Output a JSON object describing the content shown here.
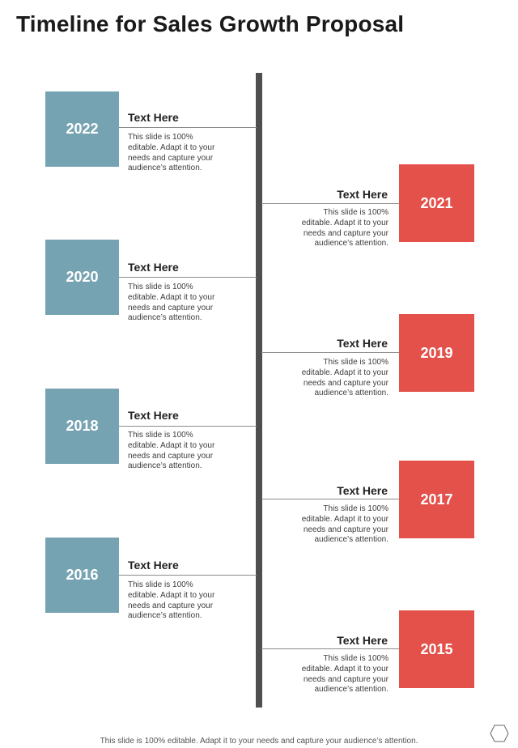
{
  "page": {
    "title": "Timeline for Sales Growth Proposal",
    "footer": "This slide is 100% editable. Adapt it to your needs and capture your audience’s attention."
  },
  "colors": {
    "left_box": "#76a3b2",
    "right_box": "#e4504a",
    "timeline_bar": "#4f4f4f"
  },
  "entries": [
    {
      "year": "2022",
      "heading": "Text Here",
      "lines": [
        "This slide is 100%",
        "editable. Adapt it to your",
        "needs and capture your",
        "audience’s attention."
      ]
    },
    {
      "year": "2021",
      "heading": "Text Here",
      "lines": [
        "This slide is 100%",
        "editable. Adapt it to your",
        "needs and capture your",
        "audience’s attention."
      ]
    },
    {
      "year": "2020",
      "heading": "Text Here",
      "lines": [
        "This slide is 100%",
        "editable. Adapt it to your",
        "needs and capture your",
        "audience’s attention."
      ]
    },
    {
      "year": "2019",
      "heading": "Text Here",
      "lines": [
        "This slide is 100%",
        "editable. Adapt it to your",
        "needs and capture your",
        "audience’s attention."
      ]
    },
    {
      "year": "2018",
      "heading": "Text Here",
      "lines": [
        "This slide is 100%",
        "editable. Adapt it to your",
        "needs and capture your",
        "audience’s attention."
      ]
    },
    {
      "year": "2017",
      "heading": "Text Here",
      "lines": [
        "This slide is 100%",
        "editable. Adapt it to your",
        "needs and capture your",
        "audience’s attention."
      ]
    },
    {
      "year": "2016",
      "heading": "Text Here",
      "lines": [
        "This slide is 100%",
        "editable. Adapt it to your",
        "needs and capture your",
        "audience’s attention."
      ]
    },
    {
      "year": "2015",
      "heading": "Text Here",
      "lines": [
        "This slide is 100%",
        "editable. Adapt it to your",
        "needs and capture your",
        "audience’s attention."
      ]
    }
  ],
  "icons": {
    "corner": "hexagon-icon"
  }
}
